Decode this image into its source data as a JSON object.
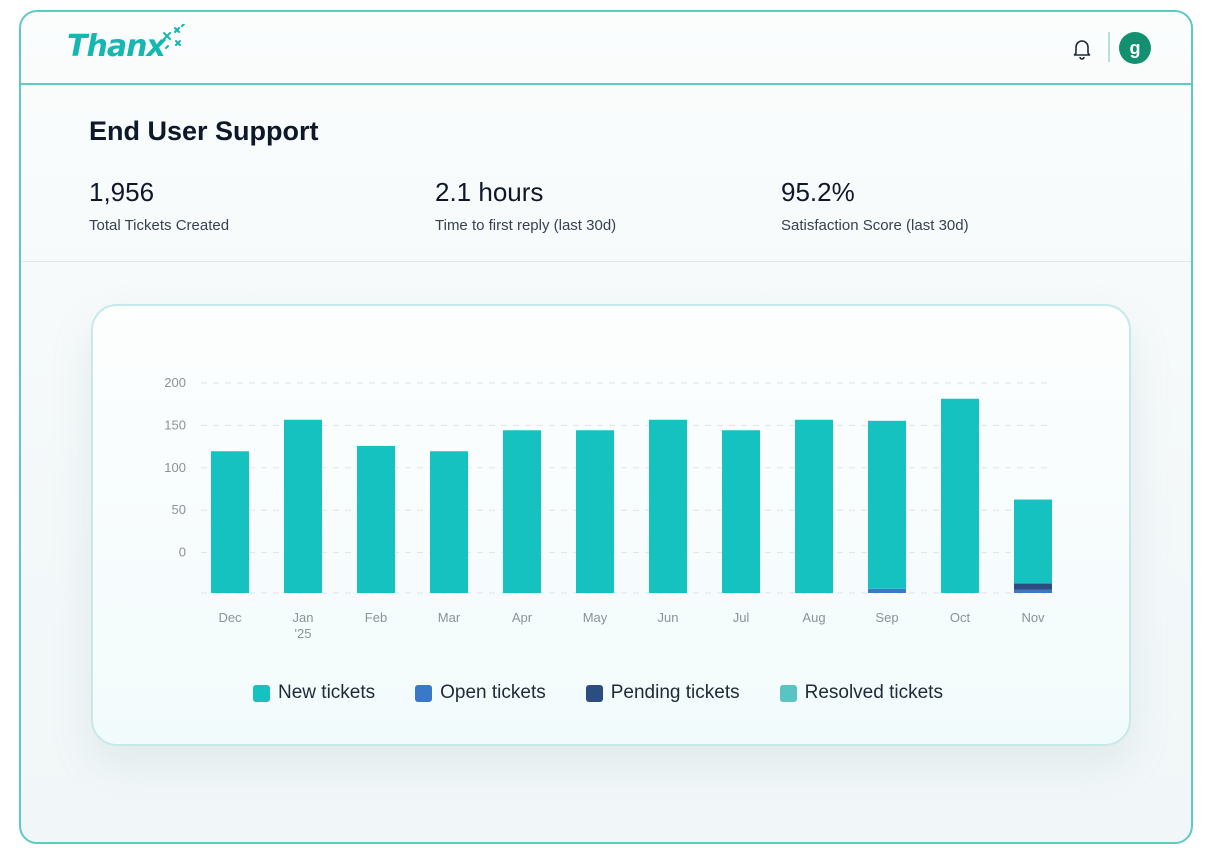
{
  "app": {
    "logo_text": "Thanx",
    "avatar_letter": "g"
  },
  "page": {
    "title": "End User Support"
  },
  "stats": [
    {
      "value": "1,956",
      "label": "Total Tickets Created"
    },
    {
      "value": "2.1 hours",
      "label": "Time to first reply (last 30d)"
    },
    {
      "value": "95.2%",
      "label": "Satisfaction Score (last 30d)"
    }
  ],
  "colors": {
    "new": "#16c2c0",
    "open": "#3a78c8",
    "pending": "#2c4d80",
    "resolved": "#5cc3c3",
    "accent": "#14b8b0"
  },
  "chart_data": {
    "type": "bar",
    "stacked": true,
    "categories": [
      "Dec",
      "Jan\n'25",
      "Feb",
      "Mar",
      "Apr",
      "May",
      "Jun",
      "Jul",
      "Aug",
      "Sep",
      "Oct",
      "Nov"
    ],
    "y_tick_labels": [
      "200",
      "150",
      "100",
      "50",
      "0"
    ],
    "ylim": [
      0,
      200
    ],
    "grid": true,
    "legend_position": "bottom",
    "series": [
      {
        "name": "New tickets",
        "values": [
          135,
          165,
          140,
          135,
          155,
          155,
          165,
          155,
          165,
          160,
          185,
          80
        ]
      },
      {
        "name": "Open tickets",
        "values": [
          0,
          0,
          0,
          0,
          0,
          0,
          0,
          0,
          0,
          4,
          0,
          3
        ]
      },
      {
        "name": "Pending tickets",
        "values": [
          0,
          0,
          0,
          0,
          0,
          0,
          0,
          0,
          0,
          0,
          0,
          6
        ]
      },
      {
        "name": "Resolved tickets",
        "values": [
          0,
          0,
          0,
          0,
          0,
          0,
          0,
          0,
          0,
          0,
          0,
          0
        ]
      }
    ]
  }
}
